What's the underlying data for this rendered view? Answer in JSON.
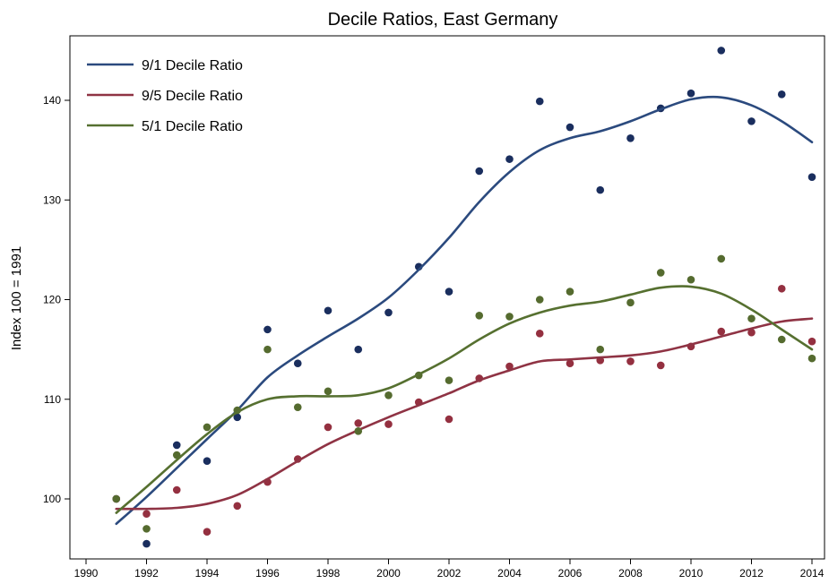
{
  "chart_data": {
    "type": "scatter",
    "title": "Decile Ratios, East Germany",
    "xlabel": "",
    "ylabel": "Index 100 = 1991",
    "xlim": [
      1990,
      2014
    ],
    "ylim": [
      94,
      146
    ],
    "x_ticks": [
      "1990",
      "1992",
      "1994",
      "1996",
      "1998",
      "2000",
      "2002",
      "2004",
      "2006",
      "2008",
      "2010",
      "2012",
      "2014"
    ],
    "y_ticks": [
      "100",
      "110",
      "120",
      "130",
      "140"
    ],
    "grid": false,
    "legend_position": "top-left",
    "x": [
      1991,
      1992,
      1993,
      1994,
      1995,
      1996,
      1997,
      1998,
      1999,
      2000,
      2001,
      2002,
      2003,
      2004,
      2005,
      2006,
      2007,
      2008,
      2009,
      2010,
      2011,
      2012,
      2013,
      2014
    ],
    "series": [
      {
        "name": "9/1 Decile Ratio",
        "color": "#1a2e5e",
        "line_color": "#2b4a7e",
        "points": [
          100.0,
          95.5,
          105.4,
          103.8,
          108.2,
          117.0,
          113.6,
          118.9,
          115.0,
          118.7,
          123.3,
          120.8,
          132.9,
          134.1,
          139.9,
          137.3,
          131.0,
          136.2,
          139.2,
          140.7,
          145.0,
          137.9,
          140.6,
          132.3
        ],
        "trend": [
          97.5,
          100.2,
          103.1,
          106.0,
          108.9,
          112.2,
          114.4,
          116.3,
          118.1,
          120.2,
          123.0,
          126.2,
          129.8,
          132.8,
          135.0,
          136.2,
          136.9,
          137.9,
          139.1,
          140.1,
          140.3,
          139.5,
          137.9,
          135.8
        ]
      },
      {
        "name": "9/5 Decile Ratio",
        "color": "#943040",
        "line_color": "#8f3344",
        "points": [
          100.0,
          98.5,
          100.9,
          96.7,
          99.3,
          101.7,
          104.0,
          107.2,
          107.6,
          107.5,
          109.7,
          108.0,
          112.1,
          113.3,
          116.6,
          113.6,
          113.9,
          113.8,
          113.4,
          115.3,
          116.8,
          116.7,
          121.1,
          115.8
        ],
        "trend": [
          99.0,
          99.0,
          99.1,
          99.5,
          100.4,
          102.0,
          103.8,
          105.5,
          106.9,
          108.2,
          109.4,
          110.6,
          111.9,
          112.9,
          113.8,
          114.0,
          114.2,
          114.4,
          114.8,
          115.5,
          116.3,
          117.1,
          117.8,
          118.1
        ]
      },
      {
        "name": "5/1 Decile Ratio",
        "color": "#556b2f",
        "line_color": "#567030",
        "points": [
          100.0,
          97.0,
          104.4,
          107.2,
          108.9,
          115.0,
          109.2,
          110.8,
          106.8,
          110.4,
          112.4,
          111.9,
          118.4,
          118.3,
          120.0,
          120.8,
          115.0,
          119.7,
          122.7,
          122.0,
          124.1,
          118.1,
          116.0,
          114.1
        ],
        "trend": [
          98.6,
          101.2,
          103.9,
          106.5,
          108.7,
          110.0,
          110.3,
          110.3,
          110.4,
          111.1,
          112.5,
          114.1,
          116.0,
          117.6,
          118.7,
          119.4,
          119.8,
          120.5,
          121.2,
          121.3,
          120.6,
          119.0,
          117.0,
          115.0
        ]
      }
    ]
  }
}
